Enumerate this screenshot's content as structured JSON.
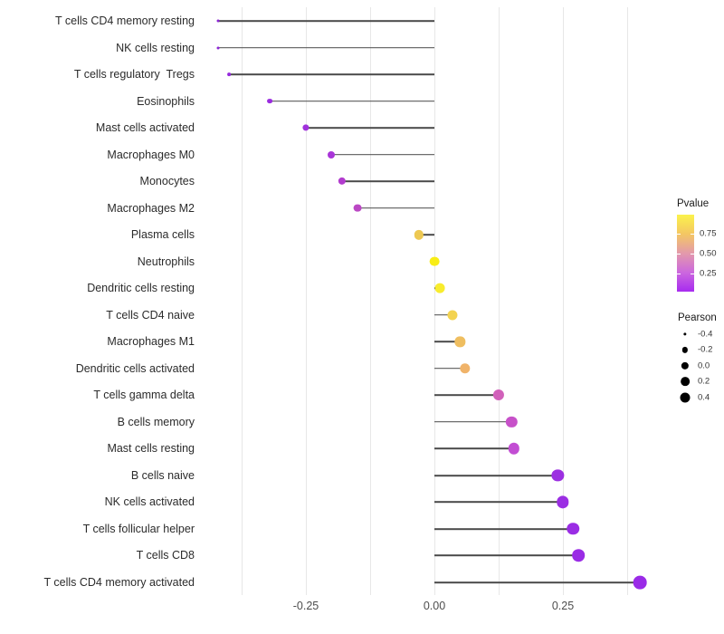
{
  "chart_data": {
    "type": "lollipop",
    "title": "",
    "xlabel": "",
    "ylabel": "",
    "xlim": [
      -0.4625,
      0.4455
    ],
    "grid": "vertical-only",
    "gridline_values": [
      -0.375,
      -0.25,
      -0.125,
      0.0,
      0.125,
      0.25,
      0.375
    ],
    "x_axis": {
      "tick_values": [
        -0.25,
        0.0,
        0.25
      ],
      "tick_labels": [
        "-0.25",
        "0.00",
        "0.25"
      ]
    },
    "points": [
      {
        "label": "T cells CD4 memory resting",
        "pearson": -0.42,
        "pvalue": 0.04,
        "color": "#8b24d4"
      },
      {
        "label": "NK cells resting",
        "pearson": -0.42,
        "pvalue": 0.05,
        "color": "#8d26d6"
      },
      {
        "label": "T cells regulatory  Tregs",
        "pearson": -0.4,
        "pvalue": 0.07,
        "color": "#9528dd"
      },
      {
        "label": "Eosinophils",
        "pearson": -0.32,
        "pvalue": 0.08,
        "color": "#9a2bdf"
      },
      {
        "label": "Mast cells activated",
        "pearson": -0.25,
        "pvalue": 0.1,
        "color": "#a031dc"
      },
      {
        "label": "Macrophages M0",
        "pearson": -0.2,
        "pvalue": 0.13,
        "color": "#a935d8"
      },
      {
        "label": "Monocytes",
        "pearson": -0.18,
        "pvalue": 0.17,
        "color": "#b23cce"
      },
      {
        "label": "Macrophages M2",
        "pearson": -0.15,
        "pvalue": 0.21,
        "color": "#bb48c4"
      },
      {
        "label": "Plasma cells",
        "pearson": -0.03,
        "pvalue": 0.7,
        "color": "#edc852"
      },
      {
        "label": "Neutrophils",
        "pearson": 0.0,
        "pvalue": 0.97,
        "color": "#f8ed16"
      },
      {
        "label": "Dendritic cells resting",
        "pearson": 0.01,
        "pvalue": 0.93,
        "color": "#f8ec2e"
      },
      {
        "label": "T cells CD4 naive",
        "pearson": 0.035,
        "pvalue": 0.76,
        "color": "#f3d351"
      },
      {
        "label": "Macrophages M1",
        "pearson": 0.05,
        "pvalue": 0.66,
        "color": "#efbe60"
      },
      {
        "label": "Dendritic cells activated",
        "pearson": 0.06,
        "pvalue": 0.62,
        "color": "#f0b369"
      },
      {
        "label": "T cells gamma delta",
        "pearson": 0.125,
        "pvalue": 0.33,
        "color": "#d161ba"
      },
      {
        "label": "B cells memory",
        "pearson": 0.15,
        "pvalue": 0.27,
        "color": "#c751c9"
      },
      {
        "label": "Mast cells resting",
        "pearson": 0.155,
        "pvalue": 0.29,
        "color": "#c24dd3"
      },
      {
        "label": "B cells naive",
        "pearson": 0.24,
        "pvalue": 0.06,
        "color": "#9c2fe1"
      },
      {
        "label": "NK cells activated",
        "pearson": 0.25,
        "pvalue": 0.055,
        "color": "#9b2ee3"
      },
      {
        "label": "T cells follicular helper",
        "pearson": 0.27,
        "pvalue": 0.05,
        "color": "#9a2de4"
      },
      {
        "label": "T cells CD8",
        "pearson": 0.28,
        "pvalue": 0.045,
        "color": "#9a2ce5"
      },
      {
        "label": "T cells CD4 memory activated",
        "pearson": 0.4,
        "pvalue": 0.04,
        "color": "#9a2be7"
      }
    ],
    "legend_pvalue": {
      "title": "Pvalue",
      "tick_labels": [
        "0.75",
        "0.50",
        "0.25"
      ],
      "tick_values": [
        0.75,
        0.5,
        0.25
      ],
      "range": [
        0.02,
        0.99
      ],
      "gradient_top_to_bottom": [
        "#fbf24b",
        "#f4c763",
        "#e39aab",
        "#cc68de",
        "#a72bef"
      ]
    },
    "legend_pearson": {
      "title": "Pearson",
      "entries": [
        {
          "label": "-0.4",
          "value": -0.4,
          "diameter": 3.3
        },
        {
          "label": "-0.2",
          "value": -0.2,
          "diameter": 6.3
        },
        {
          "label": "0.0",
          "value": 0.0,
          "diameter": 8.3
        },
        {
          "label": "0.2",
          "value": 0.2,
          "diameter": 9.7
        },
        {
          "label": "0.4",
          "value": 0.4,
          "diameter": 11.0
        }
      ]
    },
    "style_colors": {
      "gridline": "#e7e7e7",
      "stem": "#4a4a4a",
      "axis_text": "#4d4d4d",
      "category_text": "#2b2b2b"
    }
  }
}
